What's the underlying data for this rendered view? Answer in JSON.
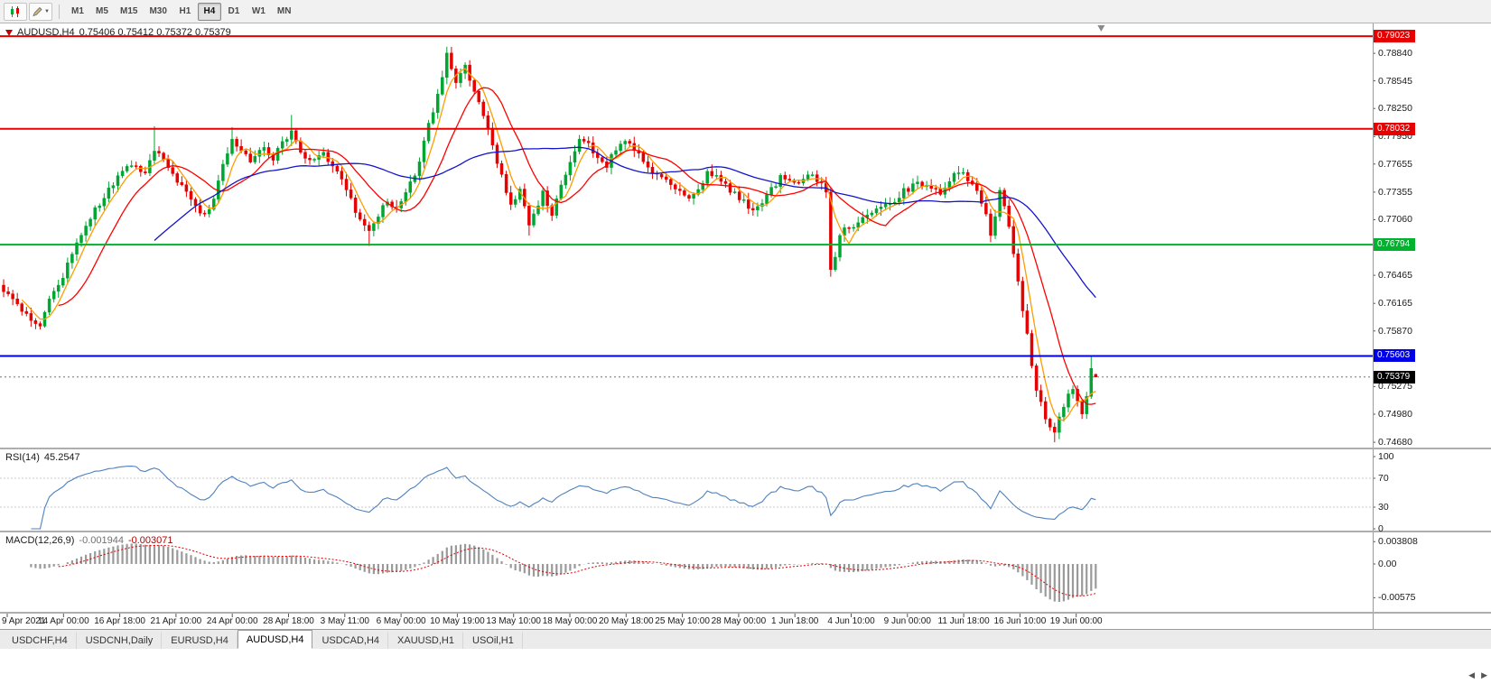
{
  "toolbar": {
    "tool_icons": [
      {
        "name": "candlestick-chart-icon"
      },
      {
        "name": "draw-pencil-icon"
      }
    ],
    "timeframes": [
      {
        "label": "M1",
        "active": false
      },
      {
        "label": "M5",
        "active": false
      },
      {
        "label": "M15",
        "active": false
      },
      {
        "label": "M30",
        "active": false
      },
      {
        "label": "H1",
        "active": false
      },
      {
        "label": "H4",
        "active": true
      },
      {
        "label": "D1",
        "active": false
      },
      {
        "label": "W1",
        "active": false
      },
      {
        "label": "MN",
        "active": false
      }
    ]
  },
  "chart": {
    "title_symbol": "AUDUSD,H4",
    "title_quotes": "0.75406 0.75412 0.75372 0.75379"
  },
  "price_axis": {
    "top_price": 0.79159,
    "bottom_price": 0.74623,
    "ticks": [
      "0.78840",
      "0.78545",
      "0.78250",
      "0.77950",
      "0.77655",
      "0.77355",
      "0.77060",
      "0.76765",
      "0.76465",
      "0.76165",
      "0.75870",
      "0.75575",
      "0.75275",
      "0.74980",
      "0.74680"
    ]
  },
  "price_lines": [
    {
      "price": 0.79023,
      "label": "0.79023",
      "color": "#e60000"
    },
    {
      "price": 0.78032,
      "label": "0.78032",
      "color": "#e60000"
    },
    {
      "price": 0.76794,
      "label": "0.76794",
      "color": "#00b22d"
    },
    {
      "price": 0.75603,
      "label": "0.75603",
      "color": "#0000e6"
    }
  ],
  "current_price": {
    "value": 0.75379,
    "label": "0.75379",
    "box_color": "#000000"
  },
  "chart_data": {
    "type": "candlestick",
    "title": "AUDUSD,H4",
    "bars_total": 240,
    "up_color": "#00a532",
    "down_color": "#e60000",
    "close_waypoints": [
      [
        0,
        0.7632
      ],
      [
        3,
        0.7614
      ],
      [
        6,
        0.76
      ],
      [
        8,
        0.759
      ],
      [
        10,
        0.7622
      ],
      [
        13,
        0.7645
      ],
      [
        16,
        0.7682
      ],
      [
        19,
        0.771
      ],
      [
        22,
        0.773
      ],
      [
        25,
        0.7752
      ],
      [
        28,
        0.7766
      ],
      [
        31,
        0.7758
      ],
      [
        33,
        0.7781
      ],
      [
        36,
        0.776
      ],
      [
        39,
        0.7742
      ],
      [
        42,
        0.7722
      ],
      [
        44,
        0.771
      ],
      [
        46,
        0.773
      ],
      [
        48,
        0.7762
      ],
      [
        50,
        0.7793
      ],
      [
        52,
        0.7778
      ],
      [
        54,
        0.7768
      ],
      [
        57,
        0.7783
      ],
      [
        59,
        0.7772
      ],
      [
        61,
        0.7788
      ],
      [
        63,
        0.78
      ],
      [
        65,
        0.778
      ],
      [
        67,
        0.7768
      ],
      [
        70,
        0.7776
      ],
      [
        72,
        0.7764
      ],
      [
        74,
        0.7748
      ],
      [
        76,
        0.7726
      ],
      [
        78,
        0.7706
      ],
      [
        80,
        0.7692
      ],
      [
        82,
        0.7712
      ],
      [
        84,
        0.7724
      ],
      [
        86,
        0.7716
      ],
      [
        88,
        0.7738
      ],
      [
        90,
        0.7752
      ],
      [
        92,
        0.7788
      ],
      [
        94,
        0.7824
      ],
      [
        96,
        0.7858
      ],
      [
        97,
        0.7882
      ],
      [
        98,
        0.7866
      ],
      [
        99,
        0.7852
      ],
      [
        100,
        0.786
      ],
      [
        101,
        0.7868
      ],
      [
        102,
        0.7856
      ],
      [
        103,
        0.7844
      ],
      [
        105,
        0.782
      ],
      [
        107,
        0.7786
      ],
      [
        109,
        0.7752
      ],
      [
        111,
        0.7722
      ],
      [
        113,
        0.7736
      ],
      [
        115,
        0.7702
      ],
      [
        117,
        0.7718
      ],
      [
        118,
        0.7734
      ],
      [
        120,
        0.7712
      ],
      [
        122,
        0.7744
      ],
      [
        124,
        0.7768
      ],
      [
        126,
        0.779
      ],
      [
        128,
        0.7786
      ],
      [
        130,
        0.777
      ],
      [
        132,
        0.7764
      ],
      [
        134,
        0.7782
      ],
      [
        136,
        0.7792
      ],
      [
        138,
        0.778
      ],
      [
        140,
        0.7768
      ],
      [
        142,
        0.7756
      ],
      [
        144,
        0.775
      ],
      [
        146,
        0.7742
      ],
      [
        148,
        0.7736
      ],
      [
        150,
        0.7726
      ],
      [
        152,
        0.7736
      ],
      [
        154,
        0.7756
      ],
      [
        156,
        0.775
      ],
      [
        158,
        0.7742
      ],
      [
        160,
        0.7734
      ],
      [
        162,
        0.7724
      ],
      [
        164,
        0.7714
      ],
      [
        166,
        0.7722
      ],
      [
        168,
        0.7738
      ],
      [
        170,
        0.7752
      ],
      [
        172,
        0.7748
      ],
      [
        174,
        0.7744
      ],
      [
        176,
        0.7754
      ],
      [
        178,
        0.7748
      ],
      [
        180,
        0.7736
      ],
      [
        181,
        0.7656
      ],
      [
        182,
        0.7668
      ],
      [
        183,
        0.769
      ],
      [
        185,
        0.7698
      ],
      [
        188,
        0.7706
      ],
      [
        191,
        0.7716
      ],
      [
        194,
        0.7724
      ],
      [
        197,
        0.7736
      ],
      [
        200,
        0.7744
      ],
      [
        203,
        0.7742
      ],
      [
        205,
        0.7736
      ],
      [
        207,
        0.7748
      ],
      [
        209,
        0.7758
      ],
      [
        211,
        0.775
      ],
      [
        213,
        0.7738
      ],
      [
        215,
        0.7714
      ],
      [
        216,
        0.7692
      ],
      [
        217,
        0.7712
      ],
      [
        218,
        0.7736
      ],
      [
        219,
        0.7722
      ],
      [
        220,
        0.77
      ],
      [
        221,
        0.7672
      ],
      [
        222,
        0.7642
      ],
      [
        223,
        0.7612
      ],
      [
        224,
        0.7582
      ],
      [
        225,
        0.7552
      ],
      [
        226,
        0.7524
      ],
      [
        227,
        0.7508
      ],
      [
        228,
        0.7494
      ],
      [
        229,
        0.7482
      ],
      [
        230,
        0.7476
      ],
      [
        231,
        0.7492
      ],
      [
        232,
        0.7506
      ],
      [
        233,
        0.7518
      ],
      [
        234,
        0.7526
      ],
      [
        235,
        0.7512
      ],
      [
        236,
        0.7496
      ],
      [
        237,
        0.7516
      ],
      [
        238,
        0.7548
      ],
      [
        239,
        0.75379
      ]
    ],
    "bar_overrides": {
      "33": {
        "h": 0.7806
      },
      "50": {
        "h": 0.7805
      },
      "63": {
        "h": 0.7818
      },
      "80": {
        "l": 0.7678
      },
      "97": {
        "h": 0.7891
      },
      "115": {
        "l": 0.7689
      },
      "181": {
        "l": 0.7645
      },
      "216": {
        "l": 0.7682
      },
      "230": {
        "l": 0.7468
      },
      "238": {
        "h": 0.7561
      },
      "239": {
        "o": 0.75406,
        "h": 0.75412,
        "l": 0.75372,
        "c": 0.75379
      }
    },
    "moving_averages": [
      {
        "period": 5,
        "color": "#ff9c00"
      },
      {
        "period": 13,
        "color": "#ff0000"
      },
      {
        "period": 34,
        "color": "#1414cc"
      }
    ],
    "x_labels": [
      "9 Apr 2021",
      "14 Apr 00:00",
      "16 Apr 18:00",
      "21 Apr 10:00",
      "24 Apr 00:00",
      "28 Apr 18:00",
      "3 May 11:00",
      "6 May 00:00",
      "10 May 19:00",
      "13 May 10:00",
      "18 May 00:00",
      "20 May 18:00",
      "25 May 10:00",
      "28 May 00:00",
      "1 Jun 18:00",
      "4 Jun 10:00",
      "9 Jun 00:00",
      "11 Jun 18:00",
      "16 Jun 10:00",
      "19 Jun 00:00"
    ]
  },
  "rsi": {
    "label": "RSI(14)",
    "value": "45.2547",
    "period": 14,
    "levels": [
      "100",
      "70",
      "30",
      "0"
    ],
    "level_lines": [
      70,
      30
    ],
    "color": "#4f81bd"
  },
  "macd": {
    "label": "MACD(12,26,9)",
    "value_main": "-0.001944",
    "value_signal": "-0.003071",
    "fast": 12,
    "slow": 26,
    "signal_period": 9,
    "axis_ticks": [
      "0.003808",
      "0.00",
      "-0.00575"
    ],
    "hist_color": "#9a9a9a",
    "signal_color": "#e00000"
  },
  "tabs": {
    "items": [
      {
        "label": "USDCHF,H4",
        "active": false
      },
      {
        "label": "USDCNH,Daily",
        "active": false
      },
      {
        "label": "EURUSD,H4",
        "active": false
      },
      {
        "label": "AUDUSD,H4",
        "active": true
      },
      {
        "label": "USDCAD,H4",
        "active": false
      },
      {
        "label": "XAUUSD,H1",
        "active": false
      },
      {
        "label": "USOil,H1",
        "active": false
      }
    ],
    "scroll_left": "◀",
    "scroll_right": "▶"
  }
}
